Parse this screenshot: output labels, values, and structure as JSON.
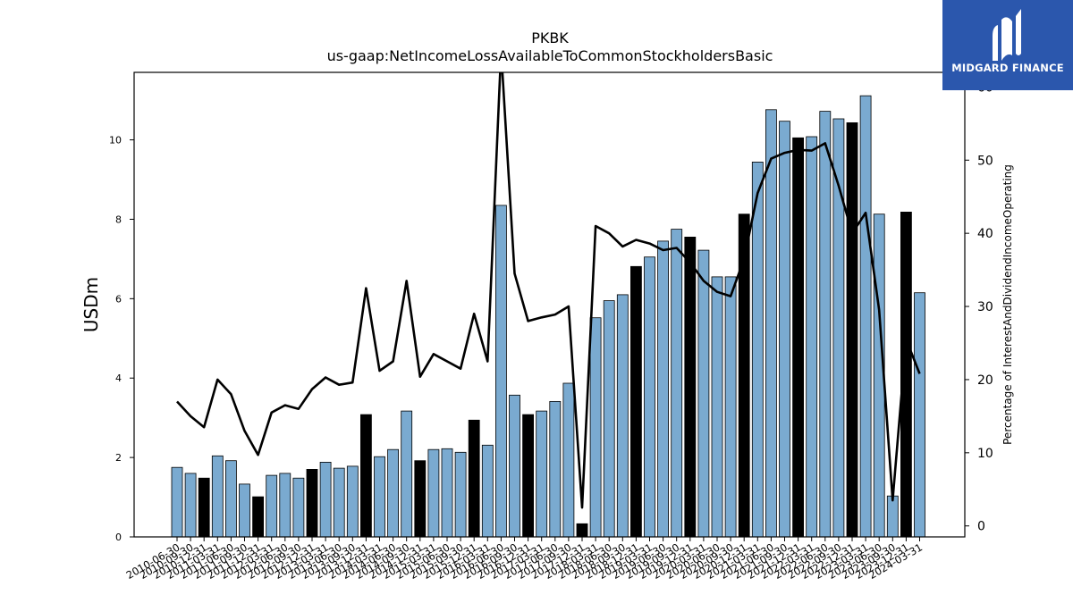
{
  "brand": {
    "name": "MIDGARD FINANCE",
    "logo_icon": "midgard-m-logo",
    "color": "#2b57ad"
  },
  "chart_data": {
    "type": "bar",
    "title": "PKBK",
    "subtitle": "us-gaap:NetIncomeLossAvailableToCommonStockholdersBasic",
    "ylabel": "USDm",
    "y2label": "Percentage of InterestAndDividendIncomeOperating",
    "ylim": [
      0,
      11.7
    ],
    "y2lim": [
      -1.5,
      62
    ],
    "yticks": [
      0,
      2,
      4,
      6,
      8,
      10
    ],
    "y2ticks": [
      0,
      10,
      20,
      30,
      40,
      50,
      60
    ],
    "grid": false,
    "colors": {
      "bar_quarter": "#7aaad0",
      "bar_annual": "#000000",
      "line": "#000000"
    },
    "categories": [
      "2010-06-30",
      "2010-09-30",
      "2010-12-31",
      "2011-03-31",
      "2011-06-30",
      "2011-09-30",
      "2011-12-31",
      "2012-03-31",
      "2012-06-30",
      "2012-09-30",
      "2012-12-31",
      "2013-03-31",
      "2013-06-30",
      "2013-09-30",
      "2013-12-31",
      "2014-03-31",
      "2014-06-30",
      "2014-09-30",
      "2014-12-31",
      "2015-03-31",
      "2015-06-30",
      "2015-09-30",
      "2015-12-31",
      "2016-03-31",
      "2016-06-30",
      "2016-09-30",
      "2016-12-31",
      "2017-03-31",
      "2017-06-30",
      "2017-09-30",
      "2017-12-31",
      "2018-03-31",
      "2018-06-30",
      "2018-09-30",
      "2018-12-31",
      "2019-03-31",
      "2019-06-30",
      "2019-09-30",
      "2019-12-31",
      "2020-03-31",
      "2020-06-30",
      "2020-09-30",
      "2020-12-31",
      "2021-03-31",
      "2021-06-30",
      "2021-09-30",
      "2021-12-31",
      "2022-03-31",
      "2022-06-30",
      "2022-09-30",
      "2022-12-31",
      "2023-03-31",
      "2023-06-30",
      "2023-09-30",
      "2023-12-31",
      "2024-03-31"
    ],
    "tick_labels": [
      "2010-06-30",
      "2010-09-30",
      "2010-12-31",
      "2011-03-31",
      "2011-06-30",
      "2011-09-30",
      "2011-12-31",
      "2012-03-31",
      "2012-06-30",
      "2012-09-30",
      "2012-12-31",
      "2013-03-31",
      "2013-06-30",
      "2013-09-30",
      "2013-12-31",
      "2014-03-31",
      "2014-06-30",
      "2014-09-30",
      "2014-12-31",
      "2015-03-31",
      "2015-06-30",
      "2015-09-30",
      "2015-12-31",
      "2016-03-31",
      "2016-06-30",
      "2016-09-30",
      "2016-12-31",
      "2017-03-31",
      "2017-06-30",
      "2017-09-30",
      "2017-12-31",
      "2018-03-31",
      "2018-06-30",
      "2018-09-30",
      "2018-12-31",
      "2019-03-31",
      "2019-06-30",
      "2019-09-30",
      "2019-12-31",
      "2020-03-31",
      "2020-06-30",
      "2020-09-30",
      "2020-12-31",
      "2021-03-31",
      "2021-06-30",
      "2021-09-30",
      "2021-12-31",
      "2022-03-31",
      "2022-06-30",
      "2022-09-30",
      "2022-12-31",
      "2023-03-31",
      "2023-06-30",
      "2023-09-30",
      "2023-12-31",
      "2024-03-31"
    ],
    "series": [
      {
        "kind": "bar",
        "axis": "left",
        "values": [
          1.75,
          1.6,
          1.48,
          2.04,
          1.92,
          1.33,
          1.01,
          1.55,
          1.6,
          1.48,
          1.7,
          1.88,
          1.73,
          1.78,
          3.08,
          2.02,
          2.2,
          3.17,
          1.92,
          2.2,
          2.22,
          2.13,
          2.94,
          2.31,
          8.35,
          3.57,
          3.08,
          3.17,
          3.41,
          3.87,
          0.33,
          5.52,
          5.95,
          6.1,
          6.81,
          7.05,
          7.45,
          7.75,
          7.55,
          7.22,
          6.55,
          6.55,
          8.13,
          9.44,
          10.76,
          10.47,
          10.05,
          10.08,
          10.72,
          10.53,
          10.43,
          11.11,
          8.13,
          1.03,
          8.18,
          6.15
        ],
        "annual": [
          false,
          false,
          true,
          false,
          false,
          false,
          true,
          false,
          false,
          false,
          true,
          false,
          false,
          false,
          true,
          false,
          false,
          false,
          true,
          false,
          false,
          false,
          true,
          false,
          false,
          false,
          true,
          false,
          false,
          false,
          true,
          false,
          false,
          false,
          true,
          false,
          false,
          false,
          true,
          false,
          false,
          false,
          true,
          false,
          false,
          false,
          true,
          false,
          false,
          false,
          true,
          false,
          false,
          false,
          true,
          false
        ]
      },
      {
        "kind": "line",
        "axis": "right",
        "values": [
          17.0,
          15.0,
          13.5,
          20.0,
          18.0,
          13.0,
          9.7,
          15.5,
          16.5,
          16.0,
          18.7,
          20.3,
          19.3,
          19.6,
          32.5,
          21.2,
          22.5,
          33.5,
          20.4,
          23.5,
          22.5,
          21.5,
          29.0,
          22.5,
          65.0,
          34.5,
          28.0,
          28.5,
          28.9,
          30.0,
          2.5,
          41.0,
          40.0,
          38.2,
          39.1,
          38.6,
          37.7,
          38.0,
          36.0,
          33.5,
          32.0,
          31.4,
          36.5,
          45.5,
          50.2,
          51.0,
          51.4,
          51.3,
          52.3,
          46.5,
          40.0,
          42.8,
          29.5,
          3.5,
          25.5,
          20.8
        ]
      }
    ]
  }
}
